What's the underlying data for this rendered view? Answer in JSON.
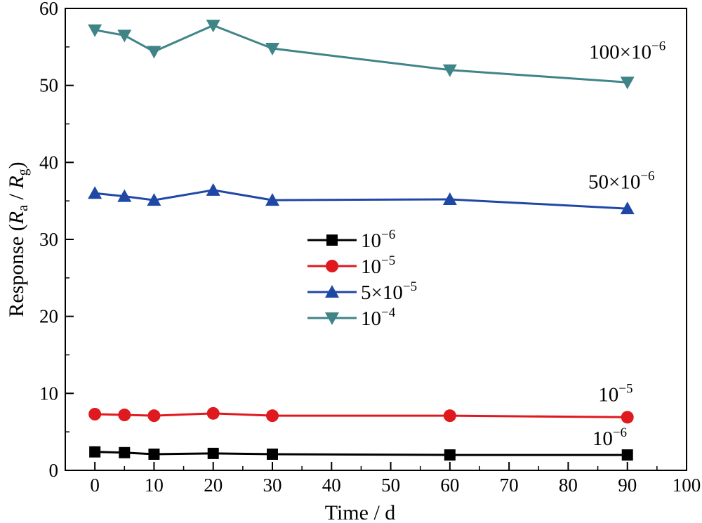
{
  "chart_data": {
    "type": "line",
    "xlabel": "Time / d",
    "ylabel": "Response (Ra / Rg)",
    "ylabel_parts": {
      "prefix": "Response (",
      "r1": "R",
      "s1": "a",
      "mid": " / ",
      "r2": "R",
      "s2": "g",
      "suffix": ")"
    },
    "xlim": [
      -5,
      100
    ],
    "ylim": [
      0,
      60
    ],
    "xticks": [
      0,
      10,
      20,
      30,
      40,
      50,
      60,
      70,
      80,
      90,
      100
    ],
    "yticks": [
      0,
      10,
      20,
      30,
      40,
      50,
      60
    ],
    "x": [
      0,
      5,
      10,
      20,
      30,
      60,
      90
    ],
    "grid": false,
    "legend_position": "center",
    "series": [
      {
        "name": "10^-6",
        "name_base": "10",
        "name_exp": "−6",
        "color": "#000000",
        "marker": "square",
        "values": [
          2.4,
          2.3,
          2.1,
          2.2,
          2.1,
          2.0,
          2.0
        ]
      },
      {
        "name": "10^-5",
        "name_base": "10",
        "name_exp": "−5",
        "color": "#e0191e",
        "marker": "circle",
        "values": [
          7.3,
          7.2,
          7.1,
          7.4,
          7.1,
          7.1,
          6.9
        ]
      },
      {
        "name": "5×10^-5",
        "name_base": "5×10",
        "name_exp": "−5",
        "color": "#1f48a6",
        "marker": "triangle-up",
        "values": [
          36.0,
          35.6,
          35.1,
          36.4,
          35.1,
          35.2,
          34.0
        ]
      },
      {
        "name": "10^-4",
        "name_base": "10",
        "name_exp": "−4",
        "color": "#3f8487",
        "marker": "triangle-down",
        "values": [
          57.2,
          56.5,
          54.4,
          57.8,
          54.8,
          52.0,
          50.4
        ]
      }
    ],
    "annotations": [
      {
        "base": "100×10",
        "exp": "−6",
        "x": 90,
        "y": 53.5,
        "for": "10^-4"
      },
      {
        "base": "50×10",
        "exp": "−6",
        "x": 89,
        "y": 36.6,
        "for": "5×10^-5"
      },
      {
        "base": "10",
        "exp": "−5",
        "x": 88,
        "y": 9.0,
        "for": "10^-5"
      },
      {
        "base": "10",
        "exp": "−6",
        "x": 87,
        "y": 3.3,
        "for": "10^-6"
      }
    ]
  }
}
